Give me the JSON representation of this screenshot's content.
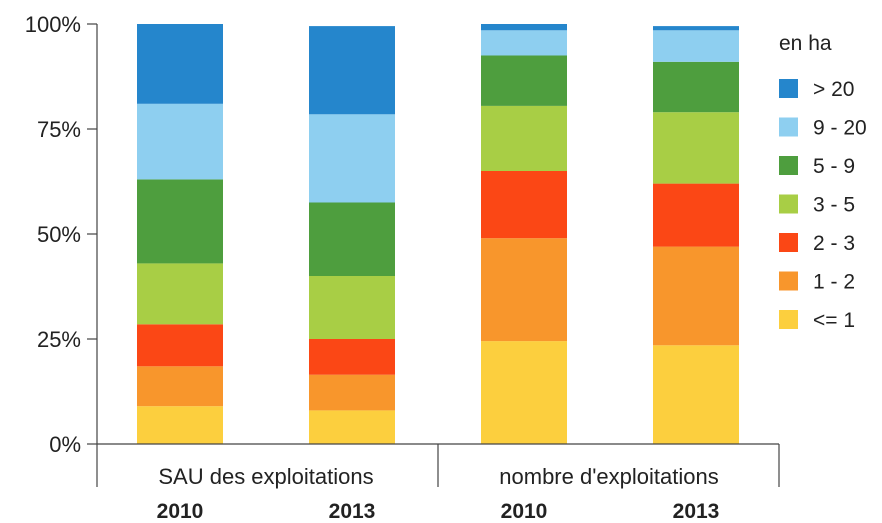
{
  "chart_data": {
    "type": "bar",
    "stacked": true,
    "normalized": true,
    "legend_title": "en ha",
    "legend_position": "right",
    "yticks": [
      "0%",
      "25%",
      "50%",
      "75%",
      "100%"
    ],
    "ylim": [
      0,
      100
    ],
    "groups": [
      "SAU des exploitations",
      "nombre d'exploitations"
    ],
    "categories": [
      "2010",
      "2013",
      "2010",
      "2013"
    ],
    "series": [
      {
        "name": "<= 1",
        "color": "#FCCF3E",
        "values": [
          9,
          8,
          24.5,
          23.5
        ]
      },
      {
        "name": "1 - 2",
        "color": "#F8962C",
        "values": [
          9.5,
          8.5,
          24.5,
          23.5
        ]
      },
      {
        "name": "2 - 3",
        "color": "#FB4715",
        "values": [
          10,
          8.5,
          16,
          15
        ]
      },
      {
        "name": "3 - 5",
        "color": "#A8CE45",
        "values": [
          14.5,
          15,
          15.5,
          17
        ]
      },
      {
        "name": "5 - 9",
        "color": "#4E9E3E",
        "values": [
          20,
          17.5,
          12,
          12
        ]
      },
      {
        "name": "9 - 20",
        "color": "#8ECFF0",
        "values": [
          18,
          21,
          6,
          7.5
        ]
      },
      {
        "name": "> 20",
        "color": "#2586CC",
        "values": [
          19,
          21,
          1.5,
          1
        ]
      }
    ]
  }
}
